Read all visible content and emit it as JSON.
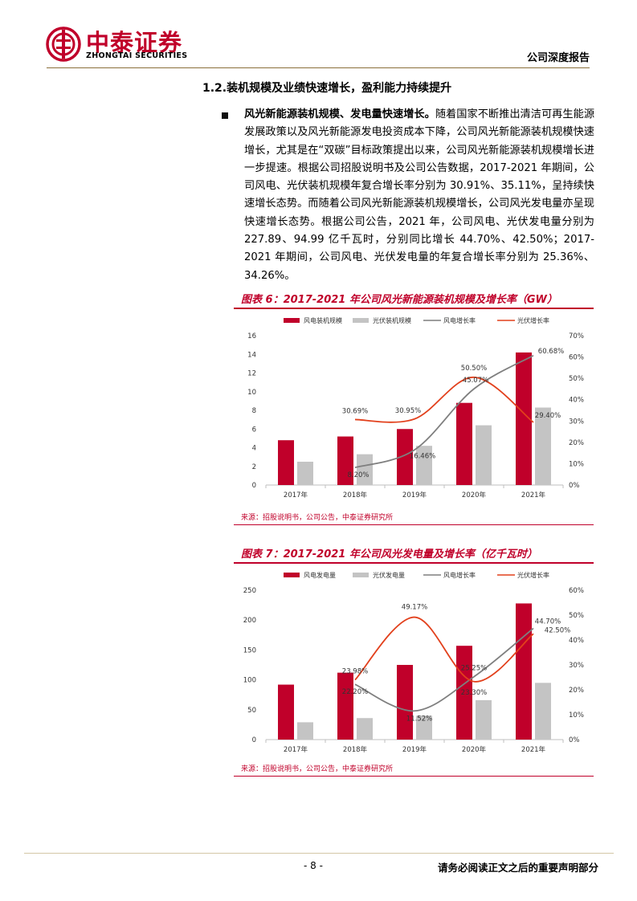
{
  "header": {
    "logo_cn": "中泰证券",
    "logo_en": "ZHONGTAI SECURITIES",
    "report_type": "公司深度报告"
  },
  "section": {
    "title": "1.2.装机规模及业绩快速增长，盈利能力持续提升"
  },
  "bullet": {
    "lead": "风光新能源装机规模、发电量快速增长。",
    "body": "随着国家不断推出清洁可再生能源发展政策以及风光新能源发电投资成本下降，公司风光新能源装机规模快速增长，尤其是在“双碳”目标政策提出以来，公司风光新能源装机规模增长进一步提速。根据公司招股说明书及公司公告数据，2017-2021 年期间，公司风电、光伏装机规模年复合增长率分别为 30.91%、35.11%，呈持续快速增长态势。而随着公司风光新能源装机规模增长，公司风光发电量亦呈现快速增长态势。根据公司公告，2021 年，公司风电、光伏发电量分别为 227.89、94.99 亿千瓦时，分别同比增长 44.70%、42.50%；2017-2021 年期间，公司风电、光伏发电量的年复合增长率分别为 25.36%、34.26%。"
  },
  "figure6": {
    "title": "图表 6：2017-2021 年公司风光新能源装机规模及增长率（GW）",
    "source": "来源：招股说明书，公司公告，中泰证券研究所",
    "legend": [
      "风电装机规模",
      "光伏装机规模",
      "风电增长率",
      "光伏增长率"
    ],
    "chart_data": {
      "type": "bar",
      "categories": [
        "2017年",
        "2018年",
        "2019年",
        "2020年",
        "2021年"
      ],
      "series": [
        {
          "name": "风电装机规模",
          "kind": "bar",
          "axis": "left",
          "values": [
            4.8,
            5.2,
            6.0,
            8.8,
            14.2
          ]
        },
        {
          "name": "光伏装机规模",
          "kind": "bar",
          "axis": "left",
          "values": [
            2.5,
            3.3,
            4.2,
            6.4,
            8.3
          ]
        },
        {
          "name": "风电增长率",
          "kind": "line",
          "axis": "right",
          "values": [
            null,
            8.2,
            16.46,
            45.07,
            60.68
          ],
          "labels": [
            "",
            "8.20%",
            "16.46%",
            "45.07%",
            "60.68%"
          ]
        },
        {
          "name": "光伏增长率",
          "kind": "line",
          "axis": "right",
          "values": [
            null,
            30.69,
            30.95,
            50.5,
            29.4
          ],
          "labels": [
            "",
            "30.69%",
            "30.95%",
            "50.50%",
            "29.40%"
          ]
        }
      ],
      "ylim": [
        0,
        16
      ],
      "yticks": [
        0,
        2,
        4,
        6,
        8,
        10,
        12,
        14,
        16
      ],
      "y2lim": [
        0,
        70
      ],
      "y2ticks": [
        "0%",
        "10%",
        "20%",
        "30%",
        "40%",
        "50%",
        "60%",
        "70%"
      ],
      "legend_position": "top",
      "grid": false,
      "colors": {
        "bar1": "#c0002a",
        "bar2": "#c4c4c4",
        "line1": "#7f7f7f",
        "line2": "#e2401c"
      }
    }
  },
  "figure7": {
    "title": "图表 7：2017-2021 年公司风光发电量及增长率（亿千瓦时）",
    "source": "来源：招股说明书，公司公告，中泰证券研究所",
    "legend": [
      "风电发电量",
      "光伏发电量",
      "风电增长率",
      "光伏增长率"
    ],
    "chart_data": {
      "type": "bar",
      "categories": [
        "2017年",
        "2018年",
        "2019年",
        "2020年",
        "2021年"
      ],
      "series": [
        {
          "name": "风电发电量",
          "kind": "bar",
          "axis": "left",
          "values": [
            92,
            112,
            125,
            157,
            227.89
          ]
        },
        {
          "name": "光伏发电量",
          "kind": "bar",
          "axis": "left",
          "values": [
            29,
            36,
            40,
            66,
            94.99
          ]
        },
        {
          "name": "风电增长率",
          "kind": "line",
          "axis": "right",
          "values": [
            null,
            22.2,
            11.52,
            25.25,
            44.7
          ],
          "labels": [
            "",
            "22.20%",
            "11.52%",
            "25.25%",
            "44.70%"
          ]
        },
        {
          "name": "光伏增长率",
          "kind": "line",
          "axis": "right",
          "values": [
            null,
            23.98,
            49.17,
            23.3,
            42.5
          ],
          "labels": [
            "",
            "23.98%",
            "49.17%",
            "23.30%",
            "42.50%"
          ]
        }
      ],
      "ylim": [
        0,
        250
      ],
      "yticks": [
        0,
        50,
        100,
        150,
        200,
        250
      ],
      "y2lim": [
        0,
        60
      ],
      "y2ticks": [
        "0%",
        "10%",
        "20%",
        "30%",
        "40%",
        "50%",
        "60%"
      ],
      "legend_position": "top",
      "grid": false,
      "colors": {
        "bar1": "#c0002a",
        "bar2": "#c4c4c4",
        "line1": "#7f7f7f",
        "line2": "#e2401c"
      }
    }
  },
  "footer": {
    "page": "- 8 -",
    "disclaimer": "请务必阅读正文之后的重要声明部分"
  }
}
